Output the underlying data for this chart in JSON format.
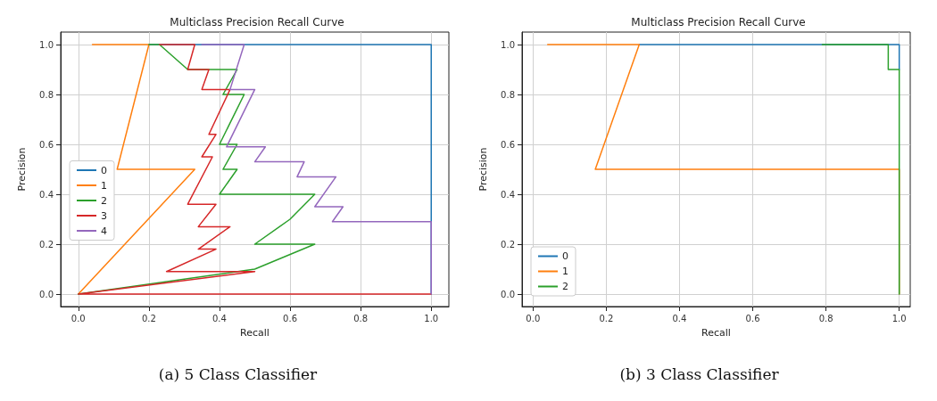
{
  "chart_data": [
    {
      "type": "line",
      "title": "Multiclass Precision Recall Curve",
      "xlabel": "Recall",
      "ylabel": "Precision",
      "annotations": [
        "(a) 5 Class Classifier"
      ],
      "xlim": [
        -0.05,
        1.05
      ],
      "ylim": [
        -0.05,
        1.05
      ],
      "xticks": [
        {
          "value": 0,
          "label": "0.0"
        },
        {
          "value": 0.2,
          "label": "0.2"
        },
        {
          "value": 0.4,
          "label": "0.4"
        },
        {
          "value": 0.6,
          "label": "0.6"
        },
        {
          "value": 0.8,
          "label": "0.8"
        },
        {
          "value": 1,
          "label": "1.0"
        }
      ],
      "yticks": [
        {
          "value": 0,
          "label": "0.0"
        },
        {
          "value": 0.2,
          "label": "0.2"
        },
        {
          "value": 0.4,
          "label": "0.4"
        },
        {
          "value": 0.6,
          "label": "0.6"
        },
        {
          "value": 0.8,
          "label": "0.8"
        },
        {
          "value": 1,
          "label": "1.0"
        }
      ],
      "grid": true,
      "legend": "left",
      "marker": "none",
      "line_style": "solid",
      "series": [
        {
          "name": "0",
          "color": "#1f77b4",
          "x": [
            0.2,
            1,
            1
          ],
          "values": [
            1,
            1,
            0
          ]
        },
        {
          "name": "1",
          "color": "#ff7f0e",
          "x": [
            0.04,
            0.2,
            0.11,
            0.33,
            0
          ],
          "values": [
            1,
            1,
            0.5,
            0.5,
            0
          ]
        },
        {
          "name": "2",
          "color": "#2ca02c",
          "x": [
            0.2,
            0.23,
            0.31,
            0.45,
            0.41,
            0.47,
            0.4,
            0.45,
            0.41,
            0.45,
            0.4,
            0.67,
            0.6,
            0.5,
            0.67,
            0.5,
            0
          ],
          "values": [
            1,
            1,
            0.9,
            0.9,
            0.8,
            0.8,
            0.6,
            0.6,
            0.5,
            0.5,
            0.4,
            0.4,
            0.3,
            0.2,
            0.2,
            0.1,
            0
          ]
        },
        {
          "name": "3",
          "color": "#d62728",
          "x": [
            0.23,
            0.33,
            0.31,
            0.37,
            0.35,
            0.43,
            0.37,
            0.39,
            0.35,
            0.38,
            0.31,
            0.39,
            0.34,
            0.43,
            0.34,
            0.39,
            0.25,
            0.5,
            0,
            1
          ],
          "values": [
            1,
            1,
            0.9,
            0.9,
            0.82,
            0.82,
            0.64,
            0.64,
            0.55,
            0.55,
            0.36,
            0.36,
            0.27,
            0.27,
            0.18,
            0.18,
            0.09,
            0.09,
            0,
            0
          ]
        },
        {
          "name": "4",
          "color": "#9467bd",
          "x": [
            0.35,
            0.47,
            0.43,
            0.5,
            0.42,
            0.53,
            0.5,
            0.64,
            0.62,
            0.73,
            0.67,
            0.75,
            0.72,
            1,
            1
          ],
          "values": [
            1,
            1,
            0.82,
            0.82,
            0.59,
            0.59,
            0.53,
            0.53,
            0.47,
            0.47,
            0.35,
            0.35,
            0.29,
            0.29,
            0
          ]
        }
      ]
    },
    {
      "type": "line",
      "title": "Multiclass Precision Recall Curve",
      "xlabel": "Recall",
      "ylabel": "Precision",
      "annotations": [
        "(b) 3 Class Classifier"
      ],
      "xlim": [
        -0.03,
        1.03
      ],
      "ylim": [
        -0.05,
        1.05
      ],
      "xticks": [
        {
          "value": 0,
          "label": "0.0"
        },
        {
          "value": 0.2,
          "label": "0.2"
        },
        {
          "value": 0.4,
          "label": "0.4"
        },
        {
          "value": 0.6,
          "label": "0.6"
        },
        {
          "value": 0.8,
          "label": "0.8"
        },
        {
          "value": 1,
          "label": "1.0"
        }
      ],
      "yticks": [
        {
          "value": 0,
          "label": "0.0"
        },
        {
          "value": 0.2,
          "label": "0.2"
        },
        {
          "value": 0.4,
          "label": "0.4"
        },
        {
          "value": 0.6,
          "label": "0.6"
        },
        {
          "value": 0.8,
          "label": "0.8"
        },
        {
          "value": 1,
          "label": "1.0"
        }
      ],
      "grid": true,
      "legend": "bottom left",
      "marker": "none",
      "line_style": "solid",
      "series": [
        {
          "name": "0",
          "color": "#1f77b4",
          "x": [
            0.29,
            1,
            1
          ],
          "values": [
            1,
            1,
            0.9
          ]
        },
        {
          "name": "1",
          "color": "#ff7f0e",
          "x": [
            0.04,
            0.29,
            0.17,
            1,
            1
          ],
          "values": [
            1,
            1,
            0.5,
            0.5,
            0
          ]
        },
        {
          "name": "2",
          "color": "#2ca02c",
          "x": [
            0.79,
            0.97,
            0.97,
            1,
            1
          ],
          "values": [
            1,
            1,
            0.9,
            0.9,
            0
          ]
        }
      ]
    }
  ]
}
